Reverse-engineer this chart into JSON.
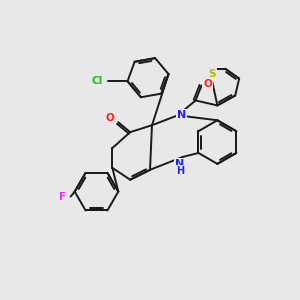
{
  "bg": "#e8e8e8",
  "bond_color": "#1a1a1a",
  "colors": {
    "N": "#2020ff",
    "O": "#ff2020",
    "S": "#b8b800",
    "Cl": "#20b820",
    "F": "#ff20ff",
    "H": "#2020ff"
  },
  "lw": 1.4,
  "figsize": [
    3.0,
    3.0
  ],
  "dpi": 100
}
